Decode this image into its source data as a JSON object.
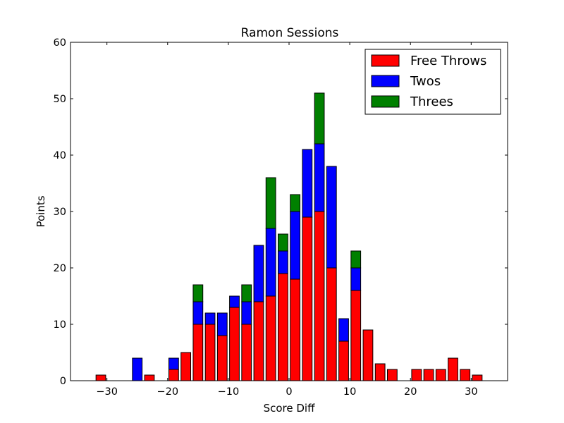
{
  "chart_data": {
    "type": "bar",
    "stacked": true,
    "title": "Ramon Sessions",
    "xlabel": "Score Diff",
    "ylabel": "Points",
    "xlim": [
      -36,
      36
    ],
    "ylim": [
      0,
      60
    ],
    "xticks": [
      -30,
      -20,
      -10,
      0,
      10,
      20,
      30
    ],
    "xtick_labels": [
      "−30",
      "−20",
      "−10",
      "0",
      "10",
      "20",
      "30"
    ],
    "yticks": [
      0,
      10,
      20,
      30,
      40,
      50,
      60
    ],
    "ytick_labels": [
      "0",
      "10",
      "20",
      "30",
      "40",
      "50",
      "60"
    ],
    "grid": false,
    "legend_position": "top-right",
    "bar_width": 1.6,
    "x": [
      -35,
      -33,
      -31,
      -29,
      -27,
      -25,
      -23,
      -21,
      -19,
      -17,
      -15,
      -13,
      -11,
      -9,
      -7,
      -5,
      -3,
      -1,
      1,
      3,
      5,
      7,
      9,
      11,
      13,
      15,
      17,
      19,
      21,
      23,
      25,
      27,
      29,
      31,
      33,
      35
    ],
    "series": [
      {
        "name": "Free Throws",
        "color": "#ff0000",
        "values": [
          0,
          0,
          1,
          0,
          0,
          0,
          1,
          0,
          2,
          5,
          10,
          10,
          8,
          13,
          10,
          14,
          15,
          19,
          18,
          29,
          30,
          20,
          7,
          16,
          9,
          3,
          2,
          0,
          2,
          2,
          2,
          4,
          2,
          1,
          0,
          0
        ]
      },
      {
        "name": "Twos",
        "color": "#0000ff",
        "values": [
          0,
          0,
          0,
          0,
          0,
          4,
          0,
          0,
          2,
          0,
          4,
          2,
          4,
          2,
          4,
          10,
          12,
          4,
          12,
          12,
          12,
          18,
          4,
          4,
          0,
          0,
          0,
          0,
          0,
          0,
          0,
          0,
          0,
          0,
          0,
          0
        ]
      },
      {
        "name": "Threes",
        "color": "#008000",
        "values": [
          0,
          0,
          0,
          0,
          0,
          0,
          0,
          0,
          0,
          0,
          3,
          0,
          0,
          0,
          3,
          0,
          9,
          3,
          3,
          0,
          9,
          0,
          0,
          3,
          0,
          0,
          0,
          0,
          0,
          0,
          0,
          0,
          0,
          0,
          0,
          0
        ]
      }
    ]
  }
}
